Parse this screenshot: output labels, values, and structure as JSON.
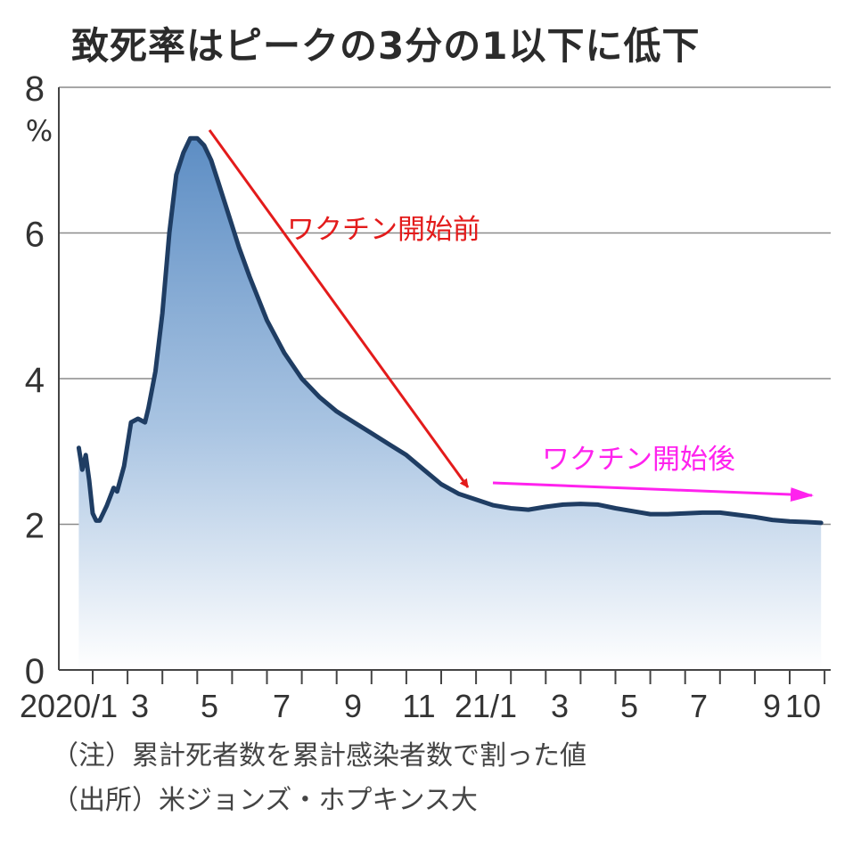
{
  "chart_data": {
    "type": "area",
    "title": "致死率はピークの3分の1以下に低下",
    "yunit": "%",
    "ylim": [
      0,
      8
    ],
    "yticks": [
      "0",
      "2",
      "4",
      "6",
      "8"
    ],
    "xticks": [
      "2020/1",
      "3",
      "5",
      "7",
      "9",
      "11",
      "21/1",
      "3",
      "5",
      "7",
      "9",
      "10"
    ],
    "grid": true,
    "x_unit": "month index from 2020/1",
    "series": [
      {
        "x": [
          -0.4,
          -0.3,
          -0.2,
          -0.1,
          0.0,
          0.1,
          0.2,
          0.4,
          0.6,
          0.7,
          0.9,
          1.1,
          1.3,
          1.5,
          1.6,
          1.7,
          1.8,
          2.0,
          2.2,
          2.4,
          2.6,
          2.8,
          3.0,
          3.2,
          3.4,
          3.6,
          3.8,
          4.0,
          4.2,
          4.5,
          5.0,
          5.5,
          6.0,
          6.5,
          7.0,
          7.5,
          8.0,
          8.5,
          9.0,
          9.5,
          10.0,
          10.5,
          11.0,
          11.5,
          12.0,
          12.5,
          13.0,
          13.5,
          14.0,
          14.5,
          15.0,
          15.5,
          16.0,
          16.5,
          17.0,
          17.5,
          18.0,
          18.5,
          19.0,
          19.5,
          20.0,
          20.5,
          20.9
        ],
        "y": [
          3.05,
          2.75,
          2.95,
          2.6,
          2.15,
          2.05,
          2.05,
          2.25,
          2.5,
          2.45,
          2.8,
          3.4,
          3.45,
          3.4,
          3.6,
          3.85,
          4.1,
          4.9,
          6.0,
          6.8,
          7.1,
          7.3,
          7.3,
          7.2,
          7.0,
          6.7,
          6.4,
          6.1,
          5.8,
          5.4,
          4.8,
          4.35,
          4.0,
          3.75,
          3.55,
          3.4,
          3.25,
          3.1,
          2.95,
          2.75,
          2.55,
          2.42,
          2.34,
          2.26,
          2.22,
          2.2,
          2.24,
          2.27,
          2.28,
          2.27,
          2.22,
          2.18,
          2.14,
          2.14,
          2.15,
          2.16,
          2.16,
          2.13,
          2.1,
          2.06,
          2.04,
          2.03,
          2.02
        ],
        "color": "#1f3d63"
      }
    ],
    "annotations": [
      {
        "text": "ワクチン開始前",
        "color": "#e31b1b"
      },
      {
        "text": "ワクチン開始後",
        "color": "#ff22ee"
      }
    ],
    "notes": [
      "（注）累計死者数を累計感染者数で割った値",
      "（出所）米ジョンズ・ホプキンス大"
    ]
  }
}
